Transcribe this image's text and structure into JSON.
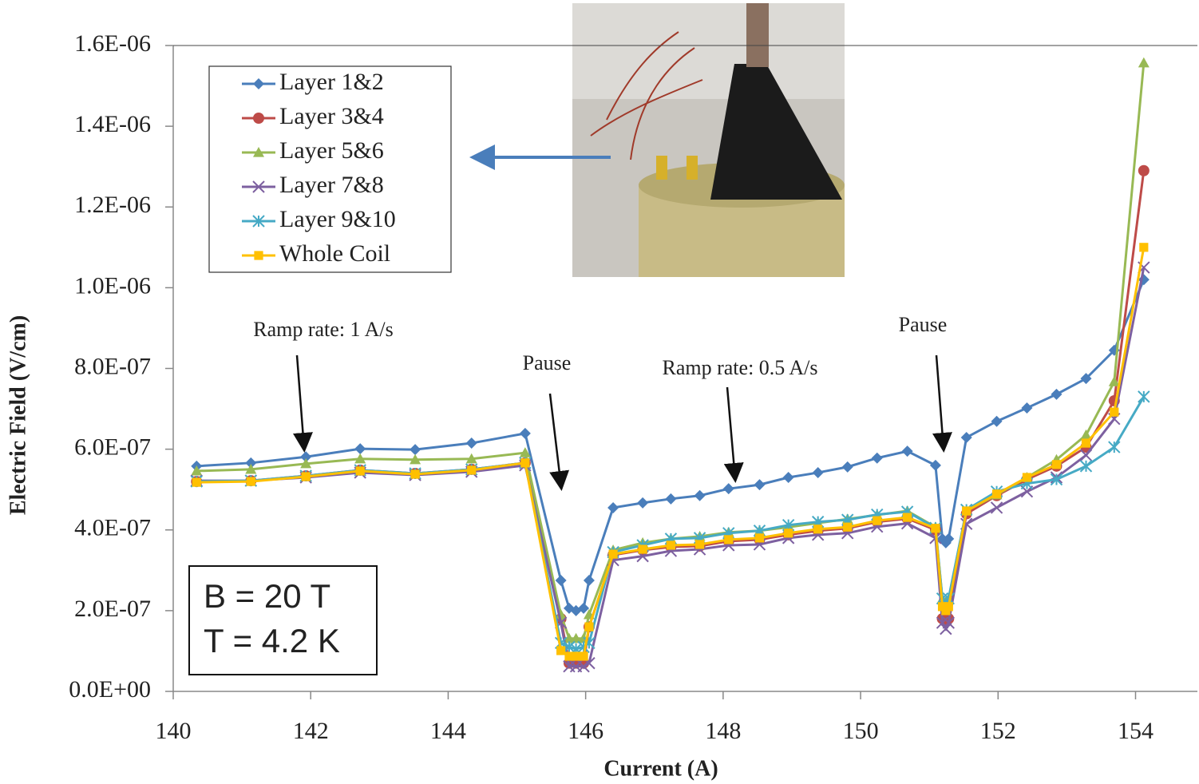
{
  "chart_data": {
    "type": "line",
    "x_label": "Current (A)",
    "y_label": "Electric Field (V/cm)",
    "xlim": [
      140,
      154.9
    ],
    "ylim": [
      0,
      1.6e-06
    ],
    "xticks": [
      140,
      142,
      144,
      146,
      148,
      150,
      152,
      154
    ],
    "yticks": [
      {
        "value": 0,
        "label": "0.0E+00"
      },
      {
        "value": 2e-07,
        "label": "2.0E-07"
      },
      {
        "value": 4e-07,
        "label": "4.0E-07"
      },
      {
        "value": 6e-07,
        "label": "6.0E-07"
      },
      {
        "value": 8e-07,
        "label": "8.0E-07"
      },
      {
        "value": 1e-06,
        "label": "1.0E-06"
      },
      {
        "value": 1.2e-06,
        "label": "1.2E-06"
      },
      {
        "value": 1.4e-06,
        "label": "1.4E-06"
      },
      {
        "value": 1.6e-06,
        "label": "1.6E-06"
      }
    ],
    "grid": false,
    "legend": "upper left",
    "x": [
      140.34,
      141.13,
      141.93,
      142.72,
      143.52,
      144.34,
      145.12,
      145.64,
      145.76,
      145.86,
      145.97,
      146.05,
      146.4,
      146.83,
      147.24,
      147.66,
      148.08,
      148.53,
      148.95,
      149.38,
      149.81,
      150.24,
      150.68,
      151.09,
      151.19,
      151.24,
      151.28,
      151.54,
      151.98,
      152.42,
      152.85,
      153.28,
      153.69,
      154.12
    ],
    "series": [
      {
        "name": "Layer 1&2",
        "color": "#4a7ebb",
        "marker": "diamond",
        "values": [
          5.58e-07,
          5.66e-07,
          5.81e-07,
          6.01e-07,
          5.99e-07,
          6.15e-07,
          6.39e-07,
          2.75e-07,
          2.06e-07,
          2e-07,
          2.06e-07,
          2.75e-07,
          4.55e-07,
          4.67e-07,
          4.77e-07,
          4.85e-07,
          5.02e-07,
          5.12e-07,
          5.3e-07,
          5.42e-07,
          5.56e-07,
          5.78e-07,
          5.95e-07,
          5.6e-07,
          3.78e-07,
          3.68e-07,
          3.78e-07,
          6.29e-07,
          6.69e-07,
          7.02e-07,
          7.36e-07,
          7.75e-07,
          8.45e-07,
          1.02e-06
        ]
      },
      {
        "name": "Layer 3&4",
        "color": "#be4b48",
        "marker": "circle",
        "values": [
          5.2e-07,
          5.22e-07,
          5.34e-07,
          5.48e-07,
          5.4e-07,
          5.5e-07,
          5.66e-07,
          1.8e-07,
          7e-08,
          7e-08,
          7e-08,
          1.6e-07,
          3.38e-07,
          3.5e-07,
          3.58e-07,
          3.6e-07,
          3.72e-07,
          3.76e-07,
          3.88e-07,
          3.98e-07,
          4.04e-07,
          4.2e-07,
          4.28e-07,
          4e-07,
          1.8e-07,
          1.75e-07,
          1.8e-07,
          4.4e-07,
          4.85e-07,
          5.25e-07,
          5.58e-07,
          6.05e-07,
          7.2e-07,
          1.29e-06
        ]
      },
      {
        "name": "Layer 5&6",
        "color": "#98b954",
        "marker": "triangle",
        "values": [
          5.46e-07,
          5.5e-07,
          5.64e-07,
          5.76e-07,
          5.74e-07,
          5.76e-07,
          5.91e-07,
          1.9e-07,
          1.31e-07,
          1.31e-07,
          1.31e-07,
          1.9e-07,
          3.5e-07,
          3.68e-07,
          3.78e-07,
          3.84e-07,
          3.94e-07,
          3.98e-07,
          4.07e-07,
          4.17e-07,
          4.27e-07,
          4.37e-07,
          4.47e-07,
          4.07e-07,
          2.29e-07,
          2.2e-07,
          2.29e-07,
          4.47e-07,
          4.87e-07,
          5.3e-07,
          5.74e-07,
          6.35e-07,
          7.67e-07,
          1.557e-06
        ]
      },
      {
        "name": "Layer 7&8",
        "color": "#7d60a0",
        "marker": "x",
        "values": [
          5.22e-07,
          5.22e-07,
          5.3e-07,
          5.42e-07,
          5.36e-07,
          5.44e-07,
          5.6e-07,
          1.7e-07,
          6.2e-08,
          6.2e-08,
          6.2e-08,
          7e-08,
          3.25e-07,
          3.35e-07,
          3.48e-07,
          3.52e-07,
          3.62e-07,
          3.64e-07,
          3.8e-07,
          3.88e-07,
          3.92e-07,
          4.08e-07,
          4.16e-07,
          3.8e-07,
          1.7e-07,
          1.55e-07,
          1.7e-07,
          4.15e-07,
          4.55e-07,
          4.95e-07,
          5.3e-07,
          5.85e-07,
          6.75e-07,
          1.05e-06
        ]
      },
      {
        "name": "Layer 9&10",
        "color": "#46aac5",
        "marker": "star",
        "values": [
          5.2e-07,
          5.22e-07,
          5.34e-07,
          5.48e-07,
          5.4e-07,
          5.5e-07,
          5.66e-07,
          1.2e-07,
          1.1e-07,
          1.05e-07,
          1.1e-07,
          1.2e-07,
          3.45e-07,
          3.62e-07,
          3.78e-07,
          3.8e-07,
          3.92e-07,
          3.98e-07,
          4.12e-07,
          4.2e-07,
          4.25e-07,
          4.38e-07,
          4.45e-07,
          4.05e-07,
          2.3e-07,
          2.2e-07,
          2.3e-07,
          4.5e-07,
          4.95e-07,
          5.15e-07,
          5.25e-07,
          5.58e-07,
          6.05e-07,
          7.3e-07
        ]
      },
      {
        "name": "Whole Coil",
        "color": "#ffc000",
        "marker": "square",
        "values": [
          5.18e-07,
          5.2e-07,
          5.32e-07,
          5.46e-07,
          5.38e-07,
          5.48e-07,
          5.66e-07,
          1.01e-07,
          8.7e-08,
          8.7e-08,
          8.7e-08,
          1.6e-07,
          3.4e-07,
          3.52e-07,
          3.62e-07,
          3.64e-07,
          3.76e-07,
          3.8e-07,
          3.92e-07,
          4.02e-07,
          4.07e-07,
          4.23e-07,
          4.31e-07,
          4.04e-07,
          2.1e-07,
          2e-07,
          2.1e-07,
          4.47e-07,
          4.89e-07,
          5.3e-07,
          5.62e-07,
          6.15e-07,
          6.92e-07,
          1.1e-06
        ]
      }
    ],
    "annotations": [
      "Ramp rate: 1 A/s",
      "Pause",
      "Ramp rate: 0.5 A/s",
      "Pause"
    ],
    "conditions": [
      "B = 20 T",
      "T = 4.2 K"
    ]
  }
}
